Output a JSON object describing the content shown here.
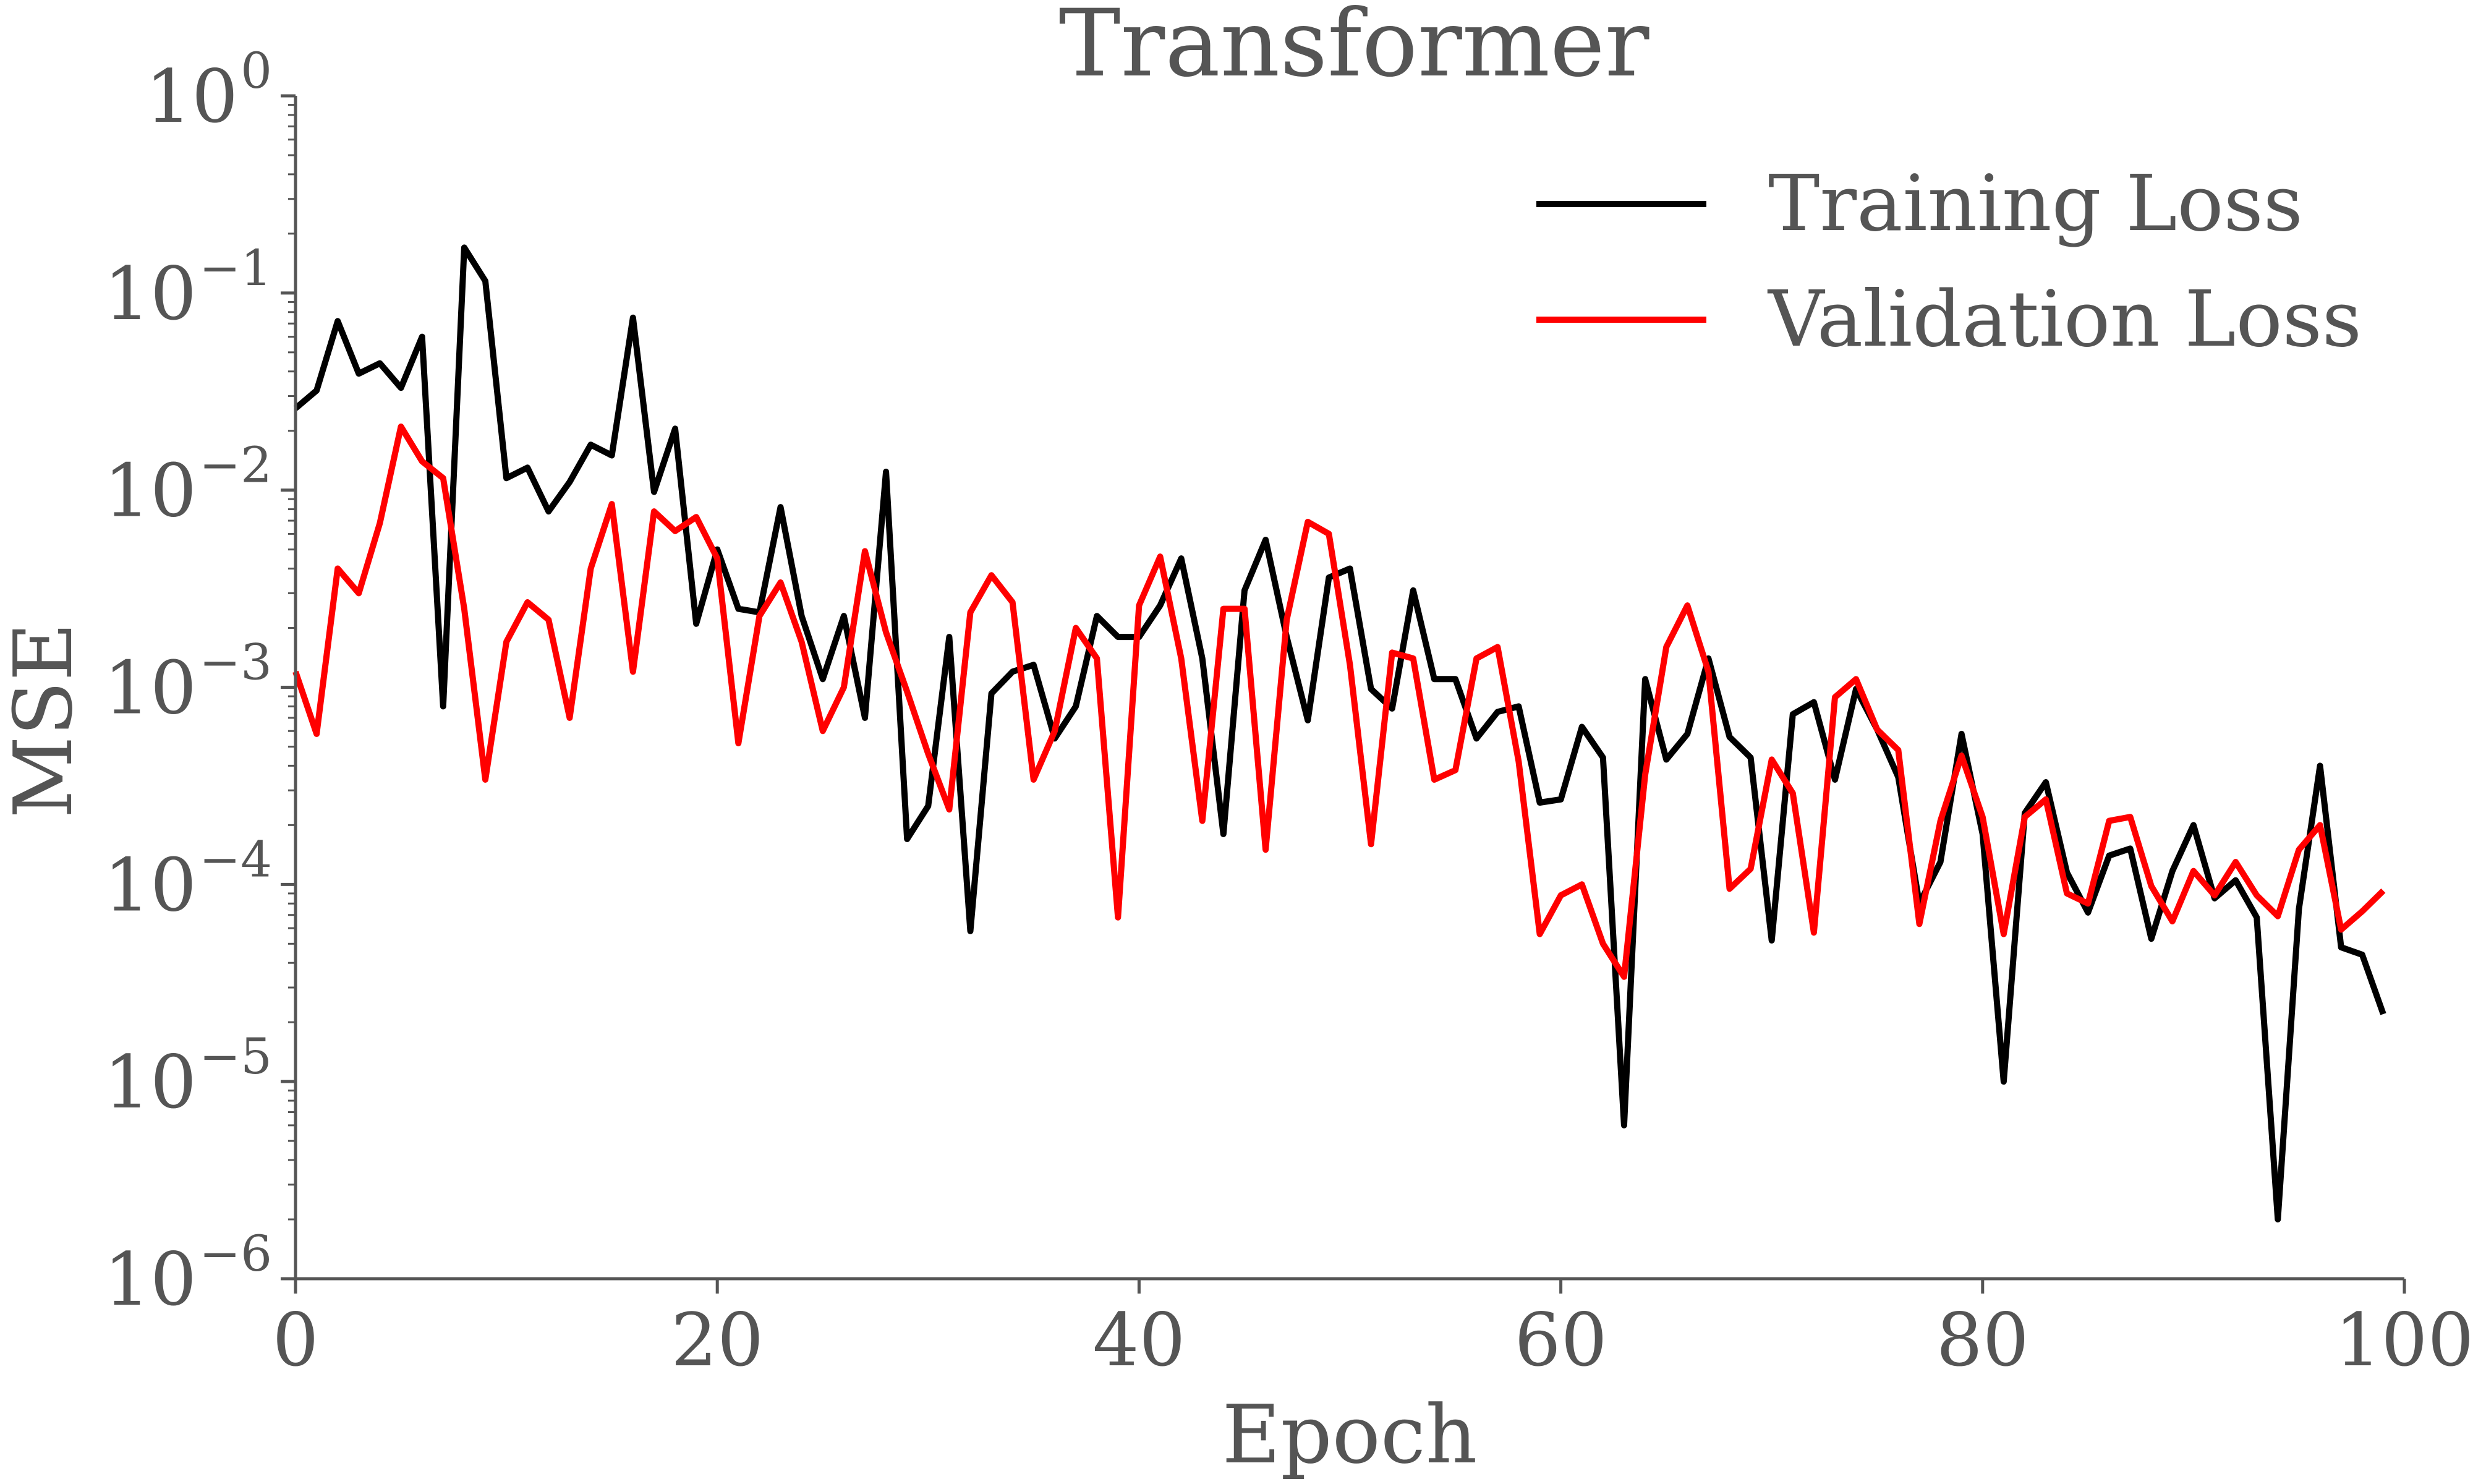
{
  "chart_data": {
    "type": "line",
    "title": "Transformer",
    "xlabel": "Epoch",
    "ylabel": "MSE",
    "xlim": [
      0,
      100
    ],
    "ylim": [
      1e-06,
      1
    ],
    "yscale": "log",
    "grid": false,
    "legend_position": "top-right",
    "x_ticks": [
      {
        "value": 0,
        "label": "0"
      },
      {
        "value": 20,
        "label": "20"
      },
      {
        "value": 40,
        "label": "40"
      },
      {
        "value": 60,
        "label": "60"
      },
      {
        "value": 80,
        "label": "80"
      },
      {
        "value": 100,
        "label": "100"
      }
    ],
    "y_ticks": [
      {
        "value": 1,
        "base": "10",
        "exp": "0"
      },
      {
        "value": 0.1,
        "base": "10",
        "exp": "−1"
      },
      {
        "value": 0.01,
        "base": "10",
        "exp": "−2"
      },
      {
        "value": 0.001,
        "base": "10",
        "exp": "−3"
      },
      {
        "value": 0.0001,
        "base": "10",
        "exp": "−4"
      },
      {
        "value": 1e-05,
        "base": "10",
        "exp": "−5"
      },
      {
        "value": 1e-06,
        "base": "10",
        "exp": "−6"
      }
    ],
    "series": [
      {
        "name": "Training Loss",
        "color": "#000000",
        "x": [
          0,
          1,
          2,
          3,
          4,
          5,
          6,
          7,
          8,
          9,
          10,
          11,
          12,
          13,
          14,
          15,
          16,
          17,
          18,
          19,
          20,
          21,
          22,
          23,
          24,
          25,
          26,
          27,
          28,
          29,
          30,
          31,
          32,
          33,
          34,
          35,
          36,
          37,
          38,
          39,
          40,
          41,
          42,
          43,
          44,
          45,
          46,
          47,
          48,
          49,
          50,
          51,
          52,
          53,
          54,
          55,
          56,
          57,
          58,
          59,
          60,
          61,
          62,
          63,
          64,
          65,
          66,
          67,
          68,
          69,
          70,
          71,
          72,
          73,
          74,
          75,
          76,
          77,
          78,
          79,
          80,
          81,
          82,
          83,
          84,
          85,
          86,
          87,
          88,
          89,
          90,
          91,
          92,
          93,
          94,
          95,
          96,
          97,
          98,
          99
        ],
        "values": [
          0.026,
          0.032,
          0.072,
          0.039,
          0.044,
          0.033,
          0.06,
          0.0008,
          0.17,
          0.115,
          0.0115,
          0.013,
          0.0078,
          0.011,
          0.017,
          0.015,
          0.075,
          0.0098,
          0.0205,
          0.0021,
          0.005,
          0.0025,
          0.0024,
          0.0082,
          0.0023,
          0.0011,
          0.0023,
          0.0007,
          0.0124,
          0.00017,
          0.00025,
          0.0018,
          5.8e-05,
          0.00093,
          0.0012,
          0.0013,
          0.00055,
          0.0008,
          0.0023,
          0.0018,
          0.0018,
          0.0026,
          0.0045,
          0.0014,
          0.00018,
          0.0031,
          0.0056,
          0.0018,
          0.00068,
          0.0036,
          0.004,
          0.00098,
          0.00078,
          0.0031,
          0.0011,
          0.0011,
          0.00055,
          0.00075,
          0.0008,
          0.00026,
          0.00027,
          0.00063,
          0.00044,
          6e-06,
          0.0011,
          0.00043,
          0.00058,
          0.0014,
          0.00056,
          0.00044,
          5.2e-05,
          0.00073,
          0.00084,
          0.00034,
          0.00098,
          0.00061,
          0.00035,
          8e-05,
          0.00013,
          0.00058,
          0.00018,
          1e-05,
          0.00023,
          0.00033,
          0.000115,
          7.2e-05,
          0.00014,
          0.000152,
          5.3e-05,
          0.000117,
          0.0002,
          8.5e-05,
          0.000105,
          6.8e-05,
          2e-06,
          7.5e-05,
          0.0004,
          4.8e-05,
          4.4e-05,
          2.2e-05
        ]
      },
      {
        "name": "Validation Loss",
        "color": "#ff0000",
        "x": [
          0,
          1,
          2,
          3,
          4,
          5,
          6,
          7,
          8,
          9,
          10,
          11,
          12,
          13,
          14,
          15,
          16,
          17,
          18,
          19,
          20,
          21,
          22,
          23,
          24,
          25,
          26,
          27,
          28,
          29,
          30,
          31,
          32,
          33,
          34,
          35,
          36,
          37,
          38,
          39,
          40,
          41,
          42,
          43,
          44,
          45,
          46,
          47,
          48,
          49,
          50,
          51,
          52,
          53,
          54,
          55,
          56,
          57,
          58,
          59,
          60,
          61,
          62,
          63,
          64,
          65,
          66,
          67,
          68,
          69,
          70,
          71,
          72,
          73,
          74,
          75,
          76,
          77,
          78,
          79,
          80,
          81,
          82,
          83,
          84,
          85,
          86,
          87,
          88,
          89,
          90,
          91,
          92,
          93,
          94,
          95,
          96,
          97,
          98,
          99
        ],
        "values": [
          0.0012,
          0.00058,
          0.004,
          0.003,
          0.0068,
          0.021,
          0.014,
          0.0115,
          0.0025,
          0.00034,
          0.0017,
          0.0027,
          0.0022,
          0.0007,
          0.004,
          0.0085,
          0.0012,
          0.0078,
          0.0062,
          0.0073,
          0.0045,
          0.00052,
          0.0023,
          0.0034,
          0.0017,
          0.0006,
          0.001,
          0.0049,
          0.0019,
          0.00095,
          0.00046,
          0.00024,
          0.0024,
          0.0037,
          0.0027,
          0.00034,
          0.0006,
          0.002,
          0.0014,
          6.8e-05,
          0.0026,
          0.0046,
          0.0014,
          0.00021,
          0.0025,
          0.0025,
          0.00015,
          0.0022,
          0.0069,
          0.006,
          0.0013,
          0.00016,
          0.0015,
          0.0014,
          0.00034,
          0.00038,
          0.0014,
          0.0016,
          0.00042,
          5.6e-05,
          8.8e-05,
          0.0001,
          5e-05,
          3.4e-05,
          0.00036,
          0.0016,
          0.0026,
          0.0012,
          9.5e-05,
          0.00012,
          0.00043,
          0.00029,
          5.7e-05,
          0.00089,
          0.0011,
          0.00061,
          0.00048,
          6.3e-05,
          0.00021,
          0.00045,
          0.00022,
          5.6e-05,
          0.00022,
          0.00027,
          9e-05,
          8e-05,
          0.00021,
          0.00022,
          9.8e-05,
          6.5e-05,
          0.000117,
          8.8e-05,
          0.00013,
          8.8e-05,
          6.9e-05,
          0.00015,
          0.0002,
          5.9e-05,
          7.3e-05,
          9.3e-05
        ]
      }
    ]
  }
}
